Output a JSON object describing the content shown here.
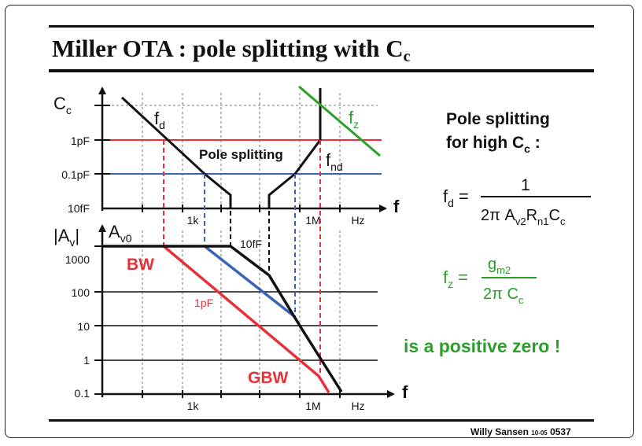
{
  "title": {
    "main": "Miller OTA : pole splitting with C",
    "sub": "c"
  },
  "footer": {
    "author": "Willy Sansen",
    "date": "10-05",
    "slide": "0537"
  },
  "top_plot": {
    "yaxis_main": "C",
    "yaxis_sub": "c",
    "y_ticks": [
      "1pF",
      "0.1pF",
      "10fF"
    ],
    "x_ticks": [
      "1k",
      "1M",
      "Hz"
    ],
    "x_axis": "f",
    "fd_main": "f",
    "fd_sub": "d",
    "fnd_main": "f",
    "fnd_sub": "nd",
    "fz_main": "f",
    "fz_sub": "z",
    "pole_splitting": "Pole splitting"
  },
  "bottom_plot": {
    "yaxis": "|A",
    "yaxis_sub": "v",
    "yaxis_end": "|",
    "av0_main": "A",
    "av0_sub": "v0",
    "y_ticks": [
      "1000",
      "100",
      "10",
      "1",
      "0.1"
    ],
    "x_ticks": [
      "1k",
      "1M",
      "Hz"
    ],
    "x_axis": "f",
    "label_10ff": "10fF",
    "label_1pf": "1pF",
    "bw": "BW",
    "gbw": "GBW"
  },
  "right_panel": {
    "heading_line1": "Pole splitting",
    "heading_line2": "for high C",
    "heading_sub": "c",
    "heading_end": " :",
    "fd_lhs": "f",
    "fd_lhs_sub": "d",
    "eq": "=",
    "fd_num": "1",
    "fd_den_a": "2π A",
    "fd_den_a_sub": "v2",
    "fd_den_b": "R",
    "fd_den_b_sub": "n1",
    "fd_den_c": "C",
    "fd_den_c_sub": "c",
    "fz_lhs": "f",
    "fz_lhs_sub": "z",
    "fz_num": "g",
    "fz_num_sub": "m2",
    "fz_den": "2π C",
    "fz_den_sub": "c",
    "positive_zero": "is a positive zero !"
  },
  "colors": {
    "red": "#e8303a",
    "blue": "#3a63b8",
    "green": "#2aa02a",
    "black": "#111111"
  }
}
